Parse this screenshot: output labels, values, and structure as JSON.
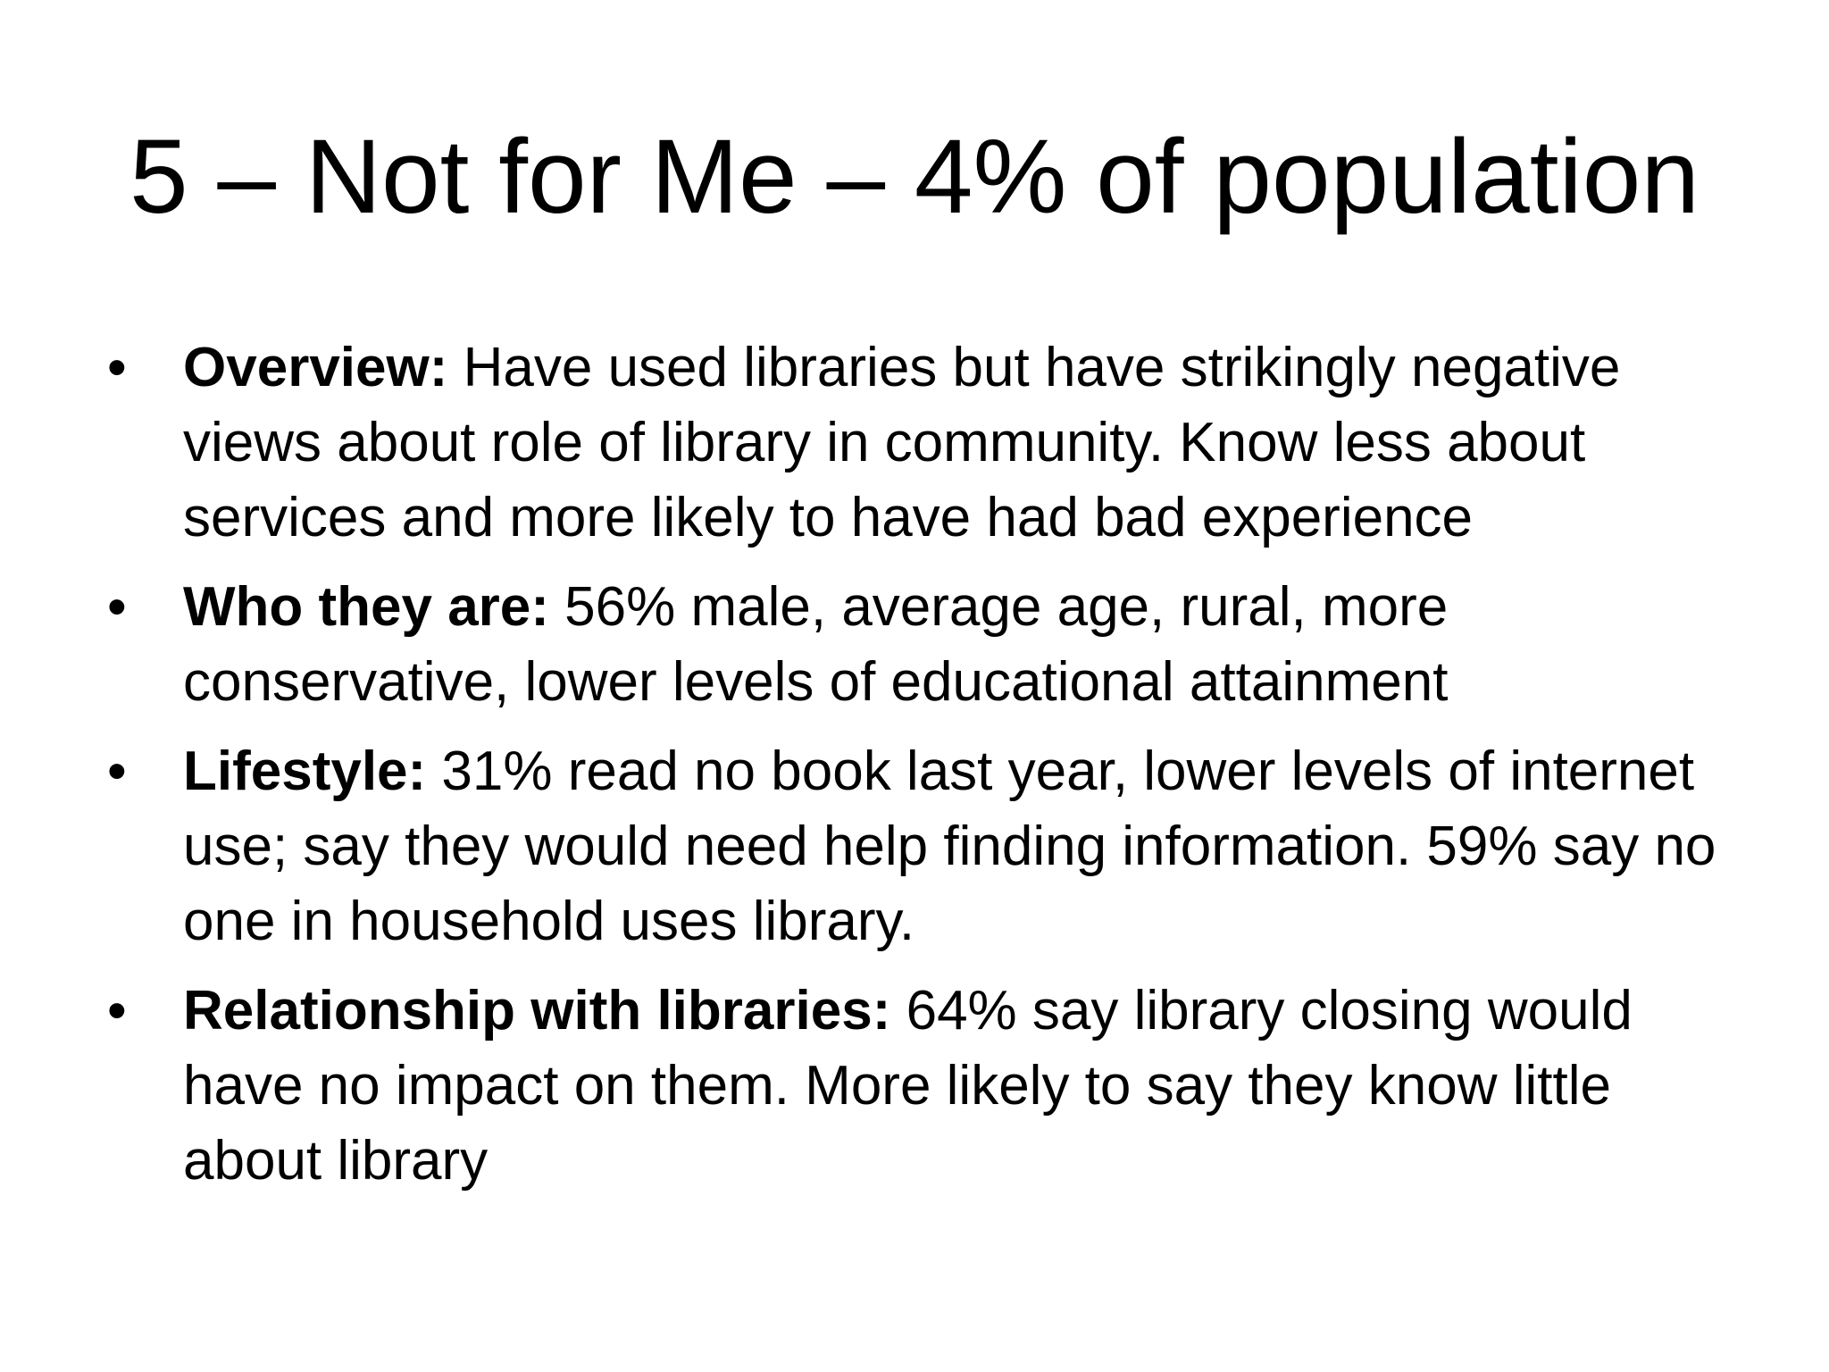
{
  "slide": {
    "title": "5 – Not for Me – 4% of population",
    "bullets": [
      {
        "label": "Overview:",
        "text": " Have used libraries but have strikingly negative views about role of library in community. Know less about services and more likely to have had bad experience"
      },
      {
        "label": "Who they are:",
        "text": " 56% male, average age, rural, more conservative, lower levels of educational attainment"
      },
      {
        "label": "Lifestyle:",
        "text": " 31% read no book last year, lower levels of internet use; say they would need help finding information. 59% say no one in household uses library."
      },
      {
        "label": "Relationship with libraries:",
        "text": " 64% say library closing would have no impact on them. More likely to say they know little about library"
      }
    ],
    "bullet_glyph": "•"
  }
}
